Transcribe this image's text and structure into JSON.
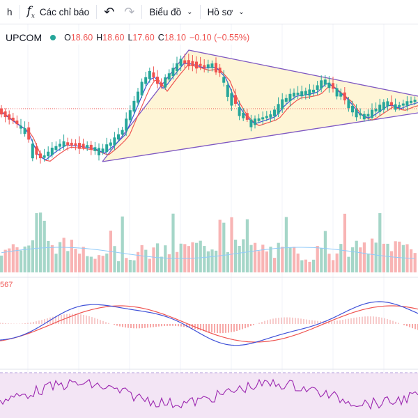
{
  "toolbar": {
    "interval_label": "h",
    "indicators_label": "Các chỉ báo",
    "chart_type_label": "Biểu đồ",
    "profile_label": "Hồ sơ"
  },
  "legend": {
    "exchange": "UPCOM",
    "o_key": "O",
    "o_val": "18.60",
    "h_key": "H",
    "h_val": "18.60",
    "l_key": "L",
    "l_val": "17.60",
    "c_key": "C",
    "c_val": "18.10",
    "change": "−0.10 (−0.55%)"
  },
  "macd_value_fragment": "567",
  "colors": {
    "up": "#26a69a",
    "down": "#ef5350",
    "ma_fast": "#3f51d8",
    "ma_slow": "#ef5350",
    "triangle_fill": "#fef5d6",
    "triangle_line": "#7e57c2",
    "rsi_line": "#9c27b0",
    "rsi_band": "#f3e5f5"
  },
  "icons": {
    "fx": "function-icon",
    "undo": "undo-icon",
    "redo": "redo-icon",
    "dropdown": "chevron-down-icon"
  }
}
